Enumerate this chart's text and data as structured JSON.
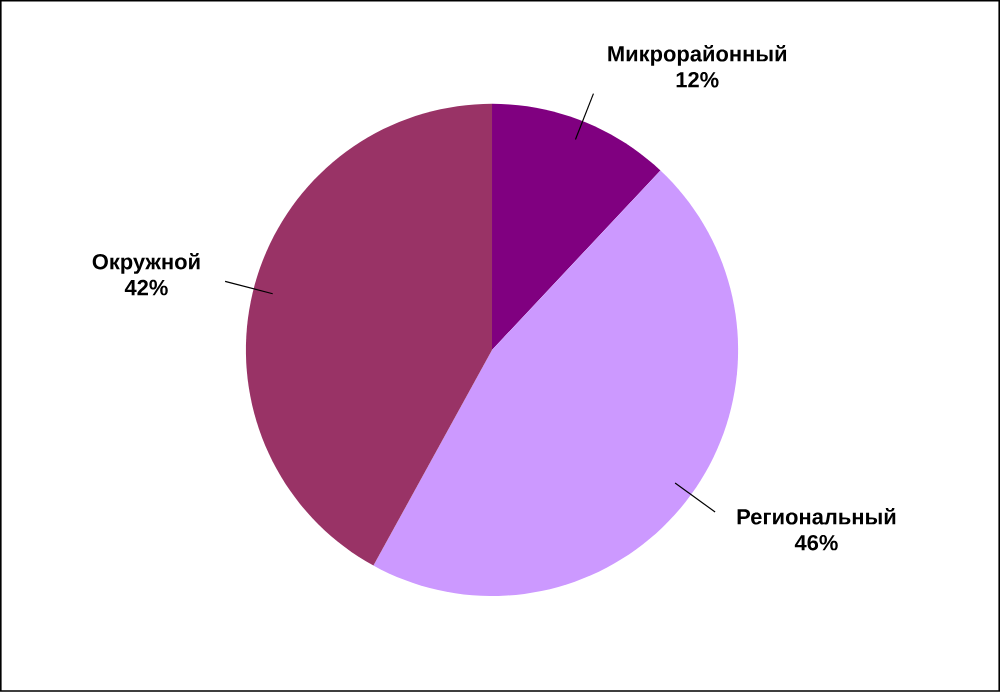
{
  "chart_data": {
    "type": "pie",
    "categories": [
      "Микрорайонный",
      "Региональный",
      "Окружной"
    ],
    "values": [
      12,
      46,
      42
    ],
    "colors": [
      "#800080",
      "#cc99ff",
      "#993366"
    ],
    "value_labels": [
      "12%",
      "46%",
      "42%"
    ]
  }
}
